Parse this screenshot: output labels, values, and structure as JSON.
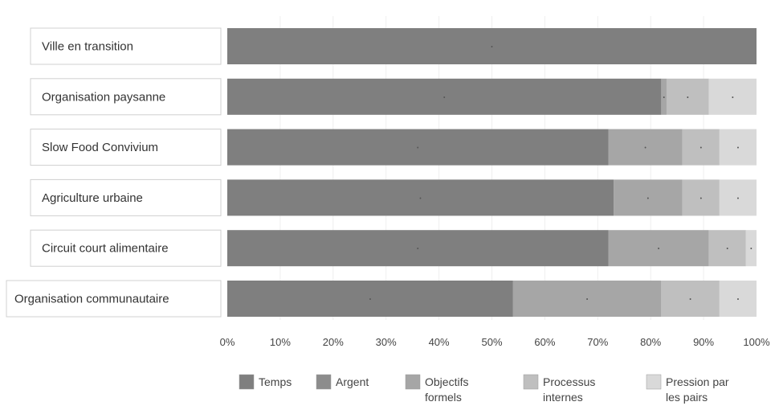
{
  "chart_data": {
    "type": "bar",
    "orientation": "horizontal",
    "stacked": true,
    "percent": true,
    "categories": [
      "Ville en transition",
      "Organisation paysanne",
      "Slow Food Convivium",
      "Agriculture urbaine",
      "Circuit court alimentaire",
      "Organisation communautaire"
    ],
    "series": [
      {
        "name": "Temps",
        "values": [
          100,
          82,
          72,
          73,
          72,
          54
        ]
      },
      {
        "name": "Argent",
        "values": [
          0,
          0,
          0,
          0,
          0,
          0
        ]
      },
      {
        "name": "Objectifs formels",
        "values": [
          0,
          1,
          14,
          13,
          19,
          28
        ]
      },
      {
        "name": "Processus internes",
        "values": [
          0,
          8,
          7,
          7,
          7,
          11
        ]
      },
      {
        "name": "Pression par les pairs",
        "values": [
          0,
          9,
          7,
          7,
          2,
          7
        ]
      }
    ],
    "colors": [
      "#7f7f7f",
      "#8c8c8c",
      "#a6a6a6",
      "#bfbfbf",
      "#d9d9d9"
    ],
    "xlim": [
      0,
      100
    ],
    "xticks": [
      "0%",
      "10%",
      "20%",
      "30%",
      "40%",
      "50%",
      "60%",
      "70%",
      "80%",
      "90%",
      "100%"
    ],
    "legend_position": "bottom",
    "legend_labels": [
      [
        "Temps"
      ],
      [
        "Argent"
      ],
      [
        "Objectifs",
        "formels"
      ],
      [
        "Processus",
        "internes"
      ],
      [
        "Pression par",
        "les pairs"
      ]
    ]
  }
}
